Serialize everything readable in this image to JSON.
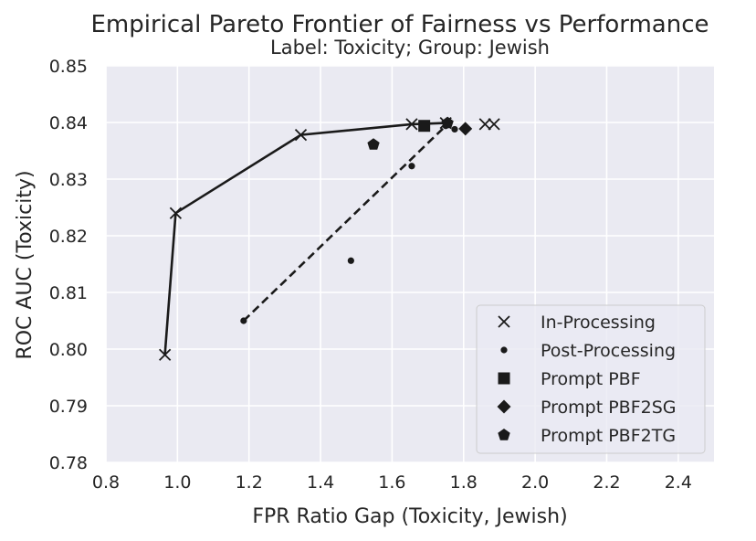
{
  "chart_data": {
    "type": "scatter",
    "title": "Empirical Pareto Frontier of Fairness vs Performance",
    "subtitle": "Label: Toxicity; Group: Jewish",
    "xlabel": "FPR Ratio Gap (Toxicity, Jewish)",
    "ylabel": "ROC AUC (Toxicity)",
    "xlim": [
      0.8,
      2.5
    ],
    "ylim": [
      0.78,
      0.85
    ],
    "xticks": [
      "0.8",
      "1.0",
      "1.2",
      "1.4",
      "1.6",
      "1.8",
      "2.0",
      "2.2",
      "2.4"
    ],
    "yticks": [
      "0.78",
      "0.79",
      "0.80",
      "0.81",
      "0.82",
      "0.83",
      "0.84",
      "0.85"
    ],
    "grid": true,
    "legend_position": "lower-right",
    "colors": {
      "background": "#EAEAF2",
      "grid": "#FFFFFF",
      "marker": "#1A1A1A"
    },
    "series": [
      {
        "name": "In-Processing",
        "marker": "x",
        "points": [
          {
            "x": 0.965,
            "y": 0.799
          },
          {
            "x": 0.995,
            "y": 0.824
          },
          {
            "x": 1.345,
            "y": 0.8378
          },
          {
            "x": 1.655,
            "y": 0.8397
          },
          {
            "x": 1.75,
            "y": 0.8399
          },
          {
            "x": 1.86,
            "y": 0.8397
          },
          {
            "x": 1.885,
            "y": 0.8397
          }
        ]
      },
      {
        "name": "Post-Processing",
        "marker": "dot",
        "points": [
          {
            "x": 1.185,
            "y": 0.805
          },
          {
            "x": 1.485,
            "y": 0.8156
          },
          {
            "x": 1.655,
            "y": 0.8323
          },
          {
            "x": 1.75,
            "y": 0.8394
          },
          {
            "x": 1.775,
            "y": 0.8388
          }
        ]
      },
      {
        "name": "Prompt PBF",
        "marker": "square",
        "points": [
          {
            "x": 1.69,
            "y": 0.8394
          }
        ]
      },
      {
        "name": "Prompt PBF2SG",
        "marker": "diamond",
        "points": [
          {
            "x": 1.805,
            "y": 0.8389
          }
        ]
      },
      {
        "name": "Prompt PBF2TG",
        "marker": "pentagon",
        "points": [
          {
            "x": 1.548,
            "y": 0.8361
          },
          {
            "x": 1.755,
            "y": 0.8399
          }
        ]
      }
    ],
    "frontiers": [
      {
        "series": "In-Processing",
        "style": "solid",
        "points": [
          {
            "x": 0.965,
            "y": 0.799
          },
          {
            "x": 0.995,
            "y": 0.824
          },
          {
            "x": 1.345,
            "y": 0.8378
          },
          {
            "x": 1.655,
            "y": 0.8397
          },
          {
            "x": 1.75,
            "y": 0.8399
          }
        ]
      },
      {
        "series": "Post-Processing",
        "style": "dashed",
        "points": [
          {
            "x": 1.185,
            "y": 0.805
          },
          {
            "x": 1.75,
            "y": 0.8394
          }
        ]
      }
    ]
  }
}
